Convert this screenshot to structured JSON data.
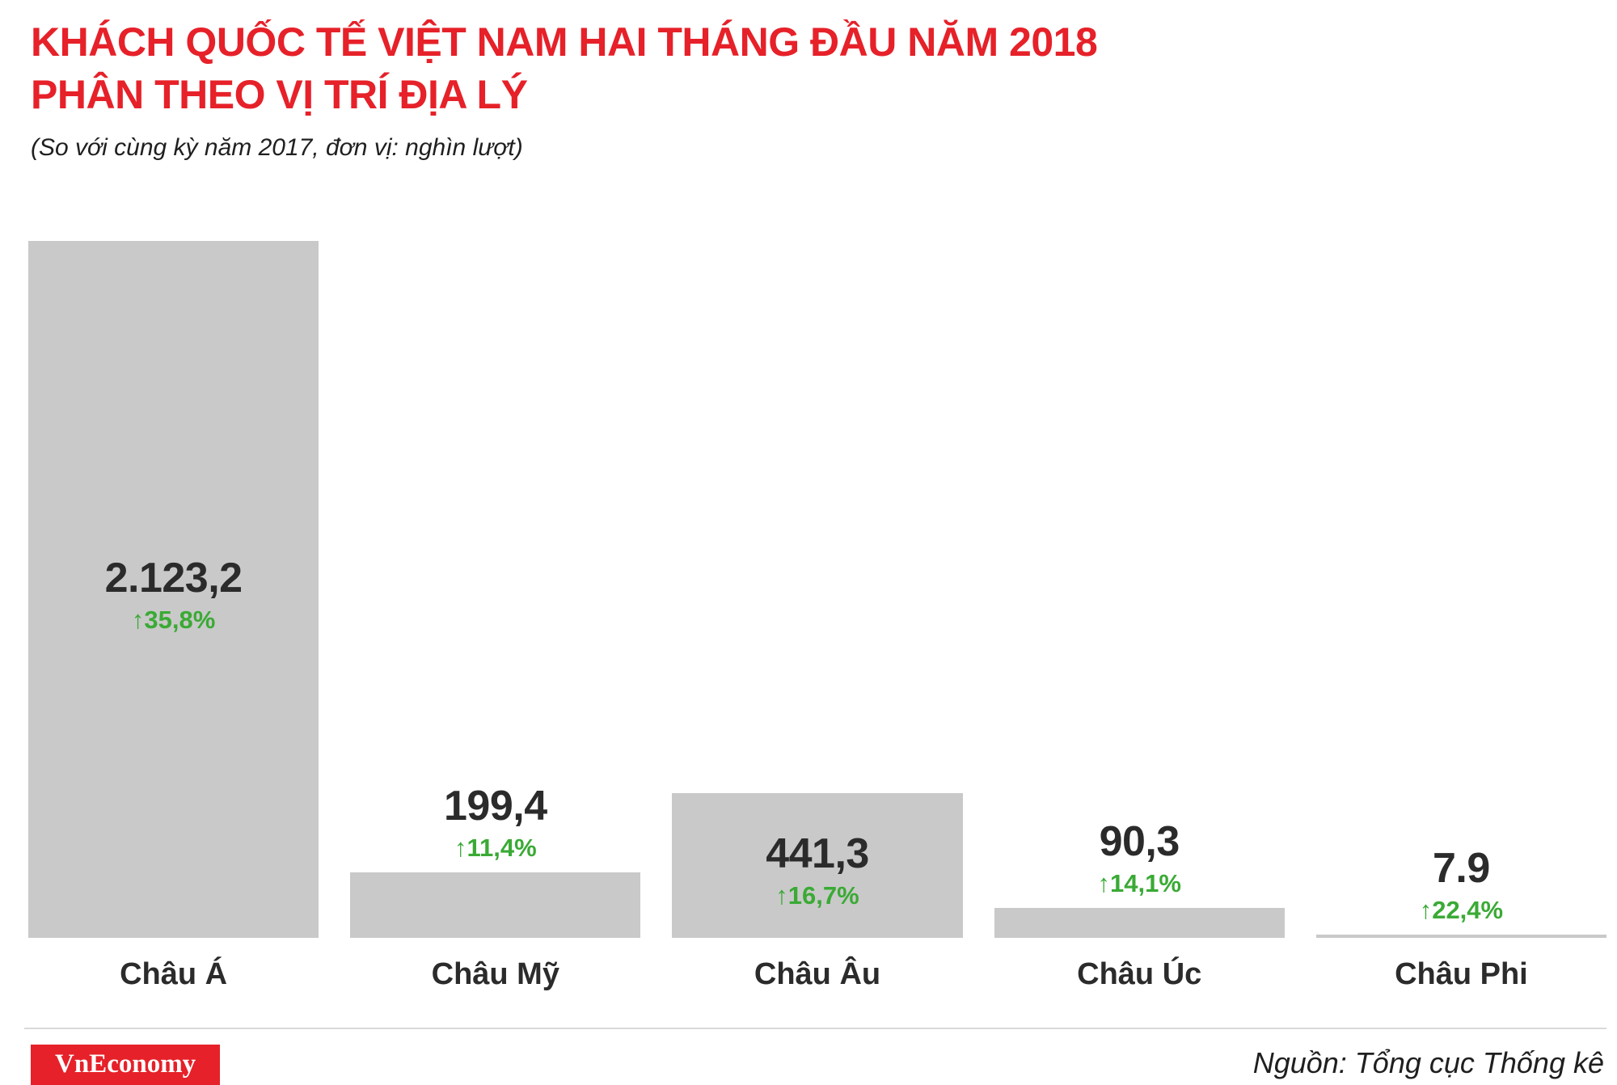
{
  "title": {
    "line1": "KHÁCH QUỐC TẾ VIỆT NAM HAI THÁNG ĐẦU NĂM 2018",
    "line2": "PHÂN THEO VỊ TRÍ ĐỊA LÝ"
  },
  "subtitle": "(So với cùng kỳ năm 2017, đơn vị: nghìn lượt)",
  "chart_data": {
    "type": "bar",
    "title": "KHÁCH QUỐC TẾ VIỆT NAM HAI THÁNG ĐẦU NĂM 2018 PHÂN THEO VỊ TRÍ ĐỊA LÝ",
    "comparison_note": "So với cùng kỳ năm 2017",
    "unit": "nghìn lượt",
    "categories": [
      "Châu Á",
      "Châu Mỹ",
      "Châu Âu",
      "Châu Úc",
      "Châu Phi"
    ],
    "values": [
      2123.2,
      199.4,
      441.3,
      90.3,
      7.9
    ],
    "value_labels": [
      "2.123,2",
      "199,4",
      "441,3",
      "90,3",
      "7.9"
    ],
    "changes_pct": [
      35.8,
      11.4,
      16.7,
      14.1,
      22.4
    ],
    "change_labels": [
      "35,8%",
      "11,4%",
      "16,7%",
      "14,1%",
      "22,4%"
    ],
    "arrow": "↑",
    "ylim": [
      0,
      2123.2
    ],
    "grid": false,
    "legend": "none",
    "bar_color": "#c9c9c9",
    "value_color": "#2b2b2b",
    "change_color": "#3aaa35"
  },
  "footer": {
    "logo_text": "VnEconomy",
    "source": "Nguồn: Tổng cục Thống kê"
  },
  "colors": {
    "title_red": "#e62129",
    "bar_gray": "#c9c9c9",
    "change_green": "#3aaa35",
    "text_dark": "#2b2b2b",
    "divider_gray": "#d9d9d9"
  }
}
